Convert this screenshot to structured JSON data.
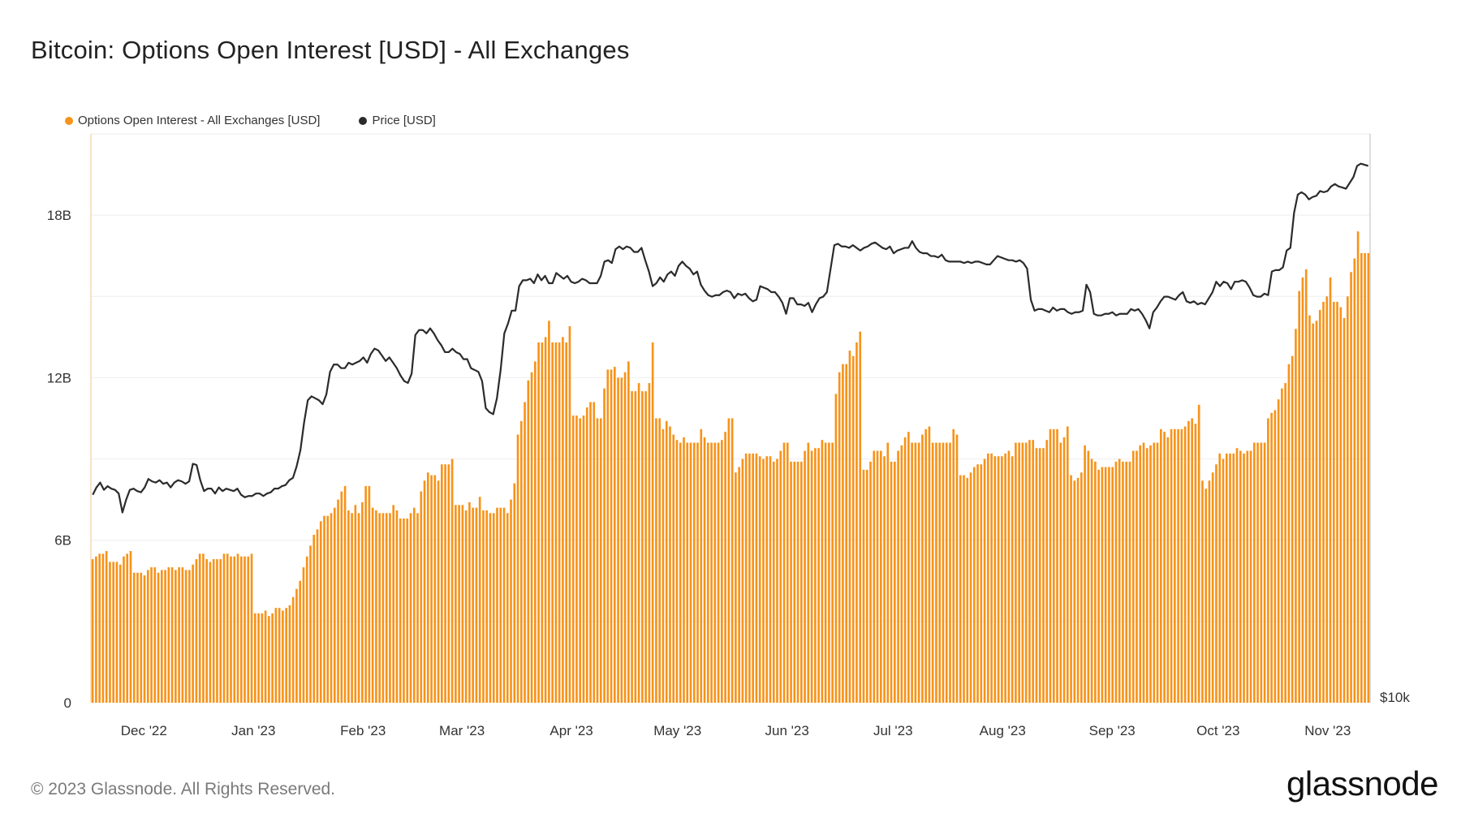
{
  "title": "Bitcoin: Options Open Interest [USD] - All Exchanges",
  "legend": {
    "items": [
      {
        "label": "Options Open Interest - All Exchanges [USD]",
        "color": "#f7931a"
      },
      {
        "label": "Price [USD]",
        "color": "#2b2b2b"
      }
    ]
  },
  "footer": {
    "copyright": "© 2023 Glassnode. All Rights Reserved.",
    "logo": "glassnode"
  },
  "chart_data": {
    "type": "bar",
    "title": "Bitcoin: Options Open Interest [USD] - All Exchanges",
    "x_range": [
      "2022-11-16",
      "2023-11-13"
    ],
    "x_ticks": [
      "Dec '22",
      "Jan '23",
      "Feb '23",
      "Mar '23",
      "Apr '23",
      "May '23",
      "Jun '23",
      "Jul '23",
      "Aug '23",
      "Sep '23",
      "Oct '23",
      "Nov '23"
    ],
    "y_left": {
      "ticks": [
        "0",
        "6B",
        "12B",
        "18B"
      ],
      "tick_values": [
        0,
        6,
        12,
        18
      ],
      "unit": "B USD",
      "range": [
        0,
        21
      ]
    },
    "y_right": {
      "ticks": [
        "$10k"
      ],
      "tick_values": [
        10000
      ],
      "range": [
        10000,
        40000
      ],
      "scale": "log"
    },
    "grid": true,
    "legend_position": "top-left",
    "series": [
      {
        "name": "Options Open Interest - All Exchanges [USD]",
        "type": "bar",
        "axis": "left",
        "color": "#f7931a",
        "values": [
          5.3,
          5.4,
          5.5,
          5.5,
          5.6,
          5.2,
          5.2,
          5.2,
          5.1,
          5.4,
          5.5,
          5.6,
          4.8,
          4.8,
          4.8,
          4.7,
          4.9,
          5.0,
          5.0,
          4.8,
          4.9,
          4.9,
          5.0,
          5.0,
          4.9,
          5.0,
          5.0,
          4.9,
          4.9,
          5.1,
          5.3,
          5.5,
          5.5,
          5.3,
          5.2,
          5.3,
          5.3,
          5.3,
          5.5,
          5.5,
          5.4,
          5.4,
          5.5,
          5.4,
          5.4,
          5.4,
          5.5,
          3.3,
          3.3,
          3.3,
          3.4,
          3.2,
          3.3,
          3.5,
          3.5,
          3.4,
          3.5,
          3.6,
          3.9,
          4.2,
          4.5,
          5.0,
          5.4,
          5.8,
          6.2,
          6.4,
          6.7,
          6.9,
          6.9,
          7.0,
          7.2,
          7.5,
          7.8,
          8.0,
          7.1,
          7.0,
          7.3,
          7.0,
          7.4,
          8.0,
          8.0,
          7.2,
          7.1,
          7.0,
          7.0,
          7.0,
          7.0,
          7.3,
          7.1,
          6.8,
          6.8,
          6.8,
          7.0,
          7.2,
          7.0,
          7.8,
          8.2,
          8.5,
          8.4,
          8.4,
          8.2,
          8.8,
          8.8,
          8.8,
          9.0,
          7.3,
          7.3,
          7.3,
          7.1,
          7.4,
          7.2,
          7.2,
          7.6,
          7.1,
          7.1,
          7.0,
          7.0,
          7.2,
          7.2,
          7.2,
          7.0,
          7.5,
          8.1,
          9.9,
          10.4,
          11.1,
          11.9,
          12.2,
          12.6,
          13.3,
          13.3,
          13.5,
          14.1,
          13.3,
          13.3,
          13.3,
          13.5,
          13.3,
          13.9,
          10.6,
          10.6,
          10.5,
          10.6,
          10.9,
          11.1,
          11.1,
          10.5,
          10.5,
          11.6,
          12.3,
          12.3,
          12.4,
          12.0,
          12.0,
          12.2,
          12.6,
          11.5,
          11.5,
          11.8,
          11.5,
          11.5,
          11.8,
          13.3,
          10.5,
          10.5,
          10.1,
          10.4,
          10.2,
          9.9,
          9.7,
          9.6,
          9.8,
          9.6,
          9.6,
          9.6,
          9.6,
          10.1,
          9.8,
          9.6,
          9.6,
          9.6,
          9.6,
          9.7,
          10.0,
          10.5,
          10.5,
          8.5,
          8.7,
          9.0,
          9.2,
          9.2,
          9.2,
          9.2,
          9.1,
          9.0,
          9.1,
          9.1,
          8.9,
          9.0,
          9.3,
          9.6,
          9.6,
          8.9,
          8.9,
          8.9,
          8.9,
          9.3,
          9.6,
          9.3,
          9.4,
          9.4,
          9.7,
          9.6,
          9.6,
          9.6,
          11.4,
          12.2,
          12.5,
          12.5,
          13.0,
          12.8,
          13.3,
          13.7,
          8.6,
          8.6,
          8.9,
          9.3,
          9.3,
          9.3,
          9.1,
          9.6,
          8.9,
          8.9,
          9.3,
          9.5,
          9.8,
          10.0,
          9.6,
          9.6,
          9.6,
          9.9,
          10.1,
          10.2,
          9.6,
          9.6,
          9.6,
          9.6,
          9.6,
          9.6,
          10.1,
          9.9,
          8.4,
          8.4,
          8.3,
          8.5,
          8.7,
          8.8,
          8.8,
          9.0,
          9.2,
          9.2,
          9.1,
          9.1,
          9.1,
          9.2,
          9.3,
          9.1,
          9.6,
          9.6,
          9.6,
          9.6,
          9.7,
          9.7,
          9.4,
          9.4,
          9.4,
          9.7,
          10.1,
          10.1,
          10.1,
          9.6,
          9.8,
          10.2,
          8.4,
          8.2,
          8.3,
          8.5,
          9.5,
          9.3,
          9.0,
          8.9,
          8.6,
          8.7,
          8.7,
          8.7,
          8.7,
          8.9,
          9.0,
          8.9,
          8.9,
          8.9,
          9.3,
          9.3,
          9.5,
          9.6,
          9.4,
          9.5,
          9.6,
          9.6,
          10.1,
          10.0,
          9.8,
          10.1,
          10.1,
          10.1,
          10.1,
          10.2,
          10.4,
          10.5,
          10.3,
          11.0,
          8.2,
          7.9,
          8.2,
          8.5,
          8.8,
          9.2,
          9.0,
          9.2,
          9.2,
          9.2,
          9.4,
          9.3,
          9.2,
          9.3,
          9.3,
          9.6,
          9.6,
          9.6,
          9.6,
          10.5,
          10.7,
          10.8,
          11.2,
          11.6,
          11.8,
          12.5,
          12.8,
          13.8,
          15.2,
          15.7,
          16.0,
          14.3,
          14.0,
          14.1,
          14.5,
          14.8,
          15.0,
          15.7,
          14.8,
          14.8,
          14.6,
          14.2,
          15.0,
          15.9,
          16.4,
          17.4,
          16.6,
          16.6,
          16.6
        ]
      },
      {
        "name": "Price [USD]",
        "type": "line",
        "axis": "right",
        "color": "#2b2b2b",
        "values": [
          16600,
          16900,
          17100,
          16800,
          16950,
          16850,
          16800,
          16650,
          15900,
          16400,
          16800,
          16850,
          16750,
          16700,
          16900,
          17250,
          17150,
          17100,
          17200,
          17050,
          17100,
          16900,
          17100,
          17200,
          17150,
          17050,
          17150,
          17900,
          17850,
          17200,
          16750,
          16850,
          16850,
          16650,
          16900,
          16750,
          16850,
          16800,
          16750,
          16850,
          16600,
          16500,
          16550,
          16550,
          16650,
          16650,
          16550,
          16650,
          16700,
          16850,
          16850,
          16950,
          17000,
          17200,
          17300,
          17800,
          18500,
          19800,
          20900,
          21100,
          21000,
          20900,
          20700,
          21200,
          22400,
          22800,
          22800,
          22600,
          22600,
          22900,
          22800,
          22900,
          23000,
          23200,
          22900,
          23400,
          23700,
          23600,
          23300,
          23000,
          23200,
          22900,
          22600,
          22200,
          21900,
          21800,
          22300,
          24500,
          24800,
          24800,
          24600,
          24900,
          24600,
          24200,
          23900,
          23500,
          23500,
          23700,
          23500,
          23400,
          23100,
          23100,
          22600,
          22500,
          22400,
          21900,
          20500,
          20300,
          20200,
          21000,
          22500,
          24600,
          25200,
          26000,
          26000,
          27600,
          28000,
          28000,
          28100,
          27800,
          28400,
          28000,
          28300,
          27800,
          27800,
          28500,
          28300,
          28100,
          28300,
          27900,
          27800,
          27900,
          28100,
          28000,
          27800,
          27800,
          27800,
          28300,
          29300,
          29400,
          29200,
          30200,
          30400,
          30200,
          30400,
          30300,
          30000,
          30000,
          30300,
          29400,
          28600,
          27600,
          27800,
          28200,
          27900,
          28400,
          28600,
          28300,
          29000,
          29300,
          29000,
          28800,
          28400,
          28600,
          27700,
          27300,
          27000,
          26900,
          27000,
          27000,
          27200,
          27300,
          27200,
          26800,
          27100,
          27000,
          27100,
          26800,
          26600,
          26700,
          27600,
          27500,
          27400,
          27200,
          27200,
          26900,
          26500,
          25800,
          26800,
          26800,
          26400,
          26400,
          26300,
          26500,
          25900,
          26400,
          26800,
          26900,
          27200,
          28800,
          30500,
          30600,
          30400,
          30400,
          30300,
          30500,
          30300,
          30100,
          30300,
          30400,
          30600,
          30700,
          30500,
          30300,
          30200,
          30400,
          29900,
          30100,
          30200,
          30300,
          30300,
          30800,
          30300,
          30000,
          29900,
          29900,
          29700,
          29700,
          29600,
          29800,
          29400,
          29300,
          29300,
          29300,
          29300,
          29200,
          29300,
          29200,
          29300,
          29300,
          29200,
          29100,
          29100,
          29400,
          29700,
          29600,
          29500,
          29400,
          29400,
          29300,
          29400,
          29200,
          28800,
          26700,
          26000,
          26100,
          26100,
          26000,
          25900,
          26200,
          26000,
          26100,
          26100,
          25900,
          25800,
          25900,
          25900,
          26000,
          27700,
          27200,
          25800,
          25700,
          25700,
          25800,
          25800,
          25900,
          25700,
          25800,
          25800,
          25800,
          26100,
          26000,
          26100,
          25800,
          25400,
          24900,
          25900,
          26200,
          26600,
          26900,
          26900,
          26800,
          26700,
          27000,
          27200,
          26600,
          26500,
          26600,
          26400,
          26500,
          26400,
          26800,
          27200,
          27900,
          27600,
          27900,
          27800,
          27400,
          27900,
          27900,
          28000,
          27900,
          27500,
          27000,
          26900,
          26900,
          27100,
          27000,
          28600,
          28700,
          28700,
          28900,
          30100,
          30300,
          33000,
          34500,
          34700,
          34500,
          34100,
          34300,
          34400,
          34800,
          34700,
          34800,
          35200,
          35400,
          35200,
          35100,
          35000,
          35500,
          36000,
          37000,
          37200,
          37100,
          37000
        ]
      }
    ]
  }
}
